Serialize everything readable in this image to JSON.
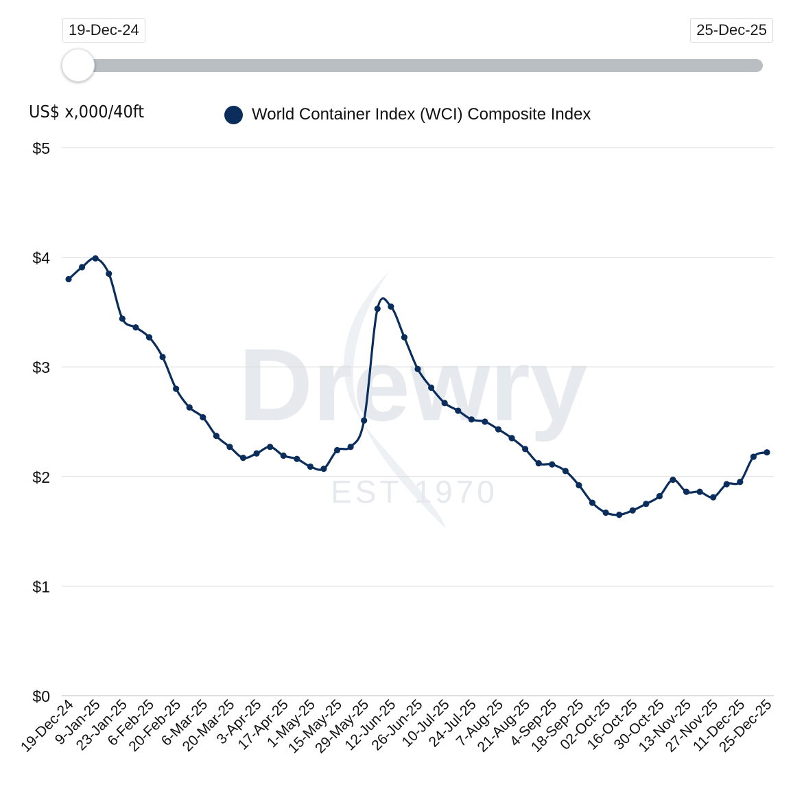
{
  "range_selector": {
    "start_label": "19-Dec-24",
    "end_label": "25-Dec-25"
  },
  "watermark": {
    "brand": "Drewry",
    "tagline": "EST 1970"
  },
  "colors": {
    "series": "#0a2d5c",
    "grid": "#d9d9d9",
    "slider_track": "#b9bec3"
  },
  "chart_data": {
    "type": "line",
    "ylabel": "US$ x,000/40ft",
    "ylim": [
      0,
      5
    ],
    "y_ticks": [
      0,
      1,
      2,
      3,
      4,
      5
    ],
    "y_tick_labels": [
      "$0",
      "$1",
      "$2",
      "$3",
      "$4",
      "$5"
    ],
    "x_tick_labels": [
      "19-Dec-24",
      "9-Jan-25",
      "23-Jan-25",
      "6-Feb-25",
      "20-Feb-25",
      "6-Mar-25",
      "20-Mar-25",
      "3-Apr-25",
      "17-Apr-25",
      "1-May-25",
      "15-May-25",
      "29-May-25",
      "12-Jun-25",
      "26-Jun-25",
      "10-Jul-25",
      "24-Jul-25",
      "7-Aug-25",
      "21-Aug-25",
      "4-Sep-25",
      "18-Sep-25",
      "02-Oct-25",
      "16-Oct-25",
      "30-Oct-25",
      "13-Nov-25",
      "27-Nov-25",
      "11-Dec-25",
      "25-Dec-25"
    ],
    "grid": "horizontal",
    "legend": "top",
    "series": [
      {
        "name": "World Container Index (WCI) Composite Index",
        "values": [
          3.8,
          3.91,
          3.99,
          3.85,
          3.44,
          3.36,
          3.27,
          3.09,
          2.8,
          2.63,
          2.54,
          2.37,
          2.27,
          2.17,
          2.21,
          2.27,
          2.19,
          2.16,
          2.09,
          2.07,
          2.24,
          2.27,
          2.51,
          3.53,
          3.55,
          3.27,
          2.98,
          2.81,
          2.67,
          2.6,
          2.52,
          2.5,
          2.43,
          2.35,
          2.25,
          2.12,
          2.11,
          2.05,
          1.92,
          1.76,
          1.67,
          1.65,
          1.69,
          1.75,
          1.82,
          1.97,
          1.86,
          1.86,
          1.81,
          1.93,
          1.95,
          2.18,
          2.22
        ]
      }
    ]
  }
}
